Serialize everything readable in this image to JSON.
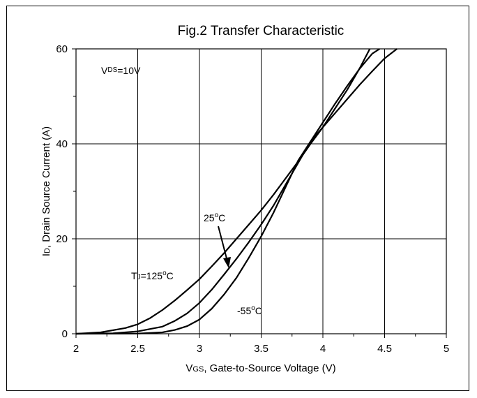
{
  "chart_data": {
    "type": "line",
    "title": "Fig.2 Transfer Characteristic",
    "xlabel": {
      "prefix": "V",
      "sub": "GS",
      "rest": ", Gate-to-Source Voltage (V)"
    },
    "ylabel": {
      "prefix": "I",
      "sub": "D",
      "rest": ", Drain Source Current (A)"
    },
    "xlim": [
      2,
      5
    ],
    "ylim": [
      0,
      60
    ],
    "xticks": [
      "2",
      "2.5",
      "3",
      "3.5",
      "4",
      "4.5",
      "5"
    ],
    "yticks": [
      "0",
      "20",
      "40",
      "60"
    ],
    "grid": true,
    "annotations": {
      "vds": {
        "prefix": "V",
        "sub": "DS",
        "rest": "=10V"
      },
      "t125": {
        "prefix": "T",
        "sub": "J",
        "rest": "=125",
        "sup": "o",
        "unit": "C"
      },
      "t25": {
        "prefix": "25",
        "sup": "o",
        "unit": "C"
      },
      "tm55": {
        "prefix": "-55",
        "sup": "o",
        "unit": "C"
      }
    },
    "series": [
      {
        "x": [
          2.0,
          2.2,
          2.4,
          2.5,
          2.6,
          2.7,
          2.8,
          2.9,
          3.0,
          3.1,
          3.2,
          3.3,
          3.4,
          3.5,
          3.6,
          3.7,
          3.8,
          3.9,
          4.0,
          4.1,
          4.2,
          4.3,
          4.38
        ],
        "y": [
          0,
          0.3,
          1.2,
          2.0,
          3.3,
          5.0,
          7.0,
          9.2,
          11.5,
          14.2,
          17.0,
          20.0,
          23.0,
          26.0,
          29.3,
          32.8,
          36.3,
          40.0,
          43.5,
          47.5,
          51.5,
          56.0,
          60
        ]
      },
      {
        "x": [
          2.0,
          2.3,
          2.5,
          2.7,
          2.8,
          2.9,
          3.0,
          3.1,
          3.2,
          3.3,
          3.4,
          3.5,
          3.6,
          3.7,
          3.8,
          3.9,
          4.0,
          4.1,
          4.2,
          4.3,
          4.4,
          4.46
        ],
        "y": [
          0,
          0.1,
          0.5,
          1.5,
          2.7,
          4.3,
          6.5,
          9.3,
          12.5,
          15.8,
          19.3,
          23.0,
          27.0,
          31.5,
          36.0,
          40.5,
          44.5,
          48.5,
          52.3,
          55.9,
          59.0,
          60
        ]
      },
      {
        "x": [
          2.0,
          2.5,
          2.7,
          2.8,
          2.9,
          3.0,
          3.1,
          3.2,
          3.3,
          3.4,
          3.5,
          3.6,
          3.7,
          3.8,
          3.9,
          4.0,
          4.1,
          4.2,
          4.3,
          4.4,
          4.5,
          4.6
        ],
        "y": [
          0,
          0.05,
          0.3,
          0.8,
          1.6,
          3.0,
          5.3,
          8.3,
          11.8,
          16.0,
          20.5,
          25.5,
          31.0,
          36.5,
          40.5,
          43.5,
          46.5,
          49.5,
          52.5,
          55.3,
          58.0,
          60
        ]
      }
    ]
  }
}
